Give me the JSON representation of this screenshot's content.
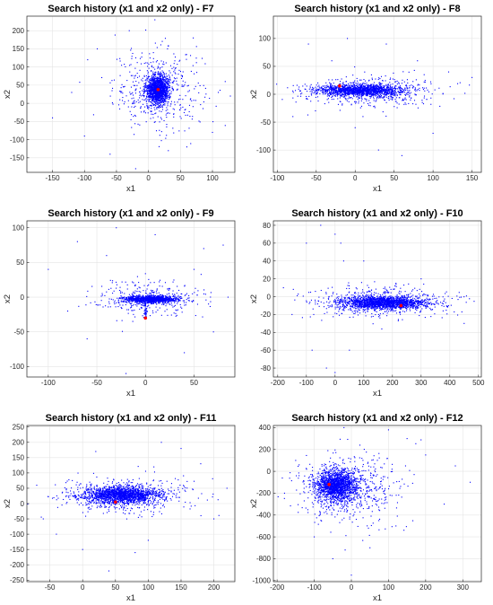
{
  "chart_data": [
    {
      "id": "f7",
      "type": "scatter",
      "title": "Search history (x1 and x2 only) - F7",
      "xlabel": "x1",
      "ylabel": "x2",
      "xlim": [
        -190,
        135
      ],
      "ylim": [
        -190,
        240
      ],
      "xticks": [
        -150,
        -100,
        -50,
        0,
        50,
        100
      ],
      "yticks": [
        -150,
        -100,
        -50,
        0,
        50,
        100,
        150,
        200
      ],
      "grid": true,
      "point_color": "#0000ff",
      "best_point": {
        "x": 15,
        "y": 38,
        "color": "#ff0000"
      },
      "cloud": {
        "cx": 15,
        "cy": 38,
        "sx": 9,
        "sy": 20,
        "n": 1400
      },
      "halo": {
        "cx": 15,
        "cy": 38,
        "sx": 35,
        "sy": 55,
        "n": 450
      },
      "outliers": [
        [
          -95,
          120
        ],
        [
          -80,
          150
        ],
        [
          -30,
          200
        ],
        [
          10,
          230
        ],
        [
          120,
          60
        ],
        [
          -150,
          -40
        ],
        [
          -100,
          -90
        ],
        [
          60,
          -120
        ],
        [
          100,
          -80
        ],
        [
          -20,
          -180
        ],
        [
          128,
          20
        ],
        [
          70,
          180
        ],
        [
          -120,
          30
        ],
        [
          -60,
          -140
        ]
      ]
    },
    {
      "id": "f8",
      "type": "scatter",
      "title": "Search history (x1 and x2 only) - F8",
      "xlabel": "x1",
      "ylabel": "x2",
      "xlim": [
        -105,
        162
      ],
      "ylim": [
        -140,
        140
      ],
      "xticks": [
        -100,
        -50,
        0,
        50,
        100,
        150
      ],
      "yticks": [
        -100,
        -50,
        0,
        50,
        100
      ],
      "grid": true,
      "point_color": "#0000ff",
      "best_point": {
        "x": -20,
        "y": 15,
        "color": "#ff0000"
      },
      "cloud": {
        "cx": 5,
        "cy": 7,
        "sx": 28,
        "sy": 5,
        "n": 1400
      },
      "halo": {
        "cx": 20,
        "cy": 5,
        "sx": 45,
        "sy": 14,
        "n": 450
      },
      "outliers": [
        [
          -60,
          90
        ],
        [
          -10,
          100
        ],
        [
          40,
          90
        ],
        [
          120,
          40
        ],
        [
          -80,
          -40
        ],
        [
          0,
          -60
        ],
        [
          30,
          -100
        ],
        [
          60,
          -110
        ],
        [
          100,
          -70
        ],
        [
          150,
          30
        ],
        [
          -30,
          60
        ],
        [
          80,
          60
        ],
        [
          10,
          -40
        ]
      ]
    },
    {
      "id": "f9",
      "type": "scatter",
      "title": "Search history (x1 and x2 only) - F9",
      "xlabel": "x1",
      "ylabel": "x2",
      "xlim": [
        -122,
        92
      ],
      "ylim": [
        -115,
        110
      ],
      "xticks": [
        -100,
        -50,
        0,
        50
      ],
      "yticks": [
        -100,
        -50,
        0,
        50,
        100
      ],
      "grid": true,
      "point_color": "#0000ff",
      "best_point": {
        "x": 0,
        "y": -30,
        "color": "#ff0000"
      },
      "cloud": {
        "cx": 5,
        "cy": -3,
        "sx": 14,
        "sy": 2.5,
        "n": 1100
      },
      "halo": {
        "cx": 5,
        "cy": -3,
        "sx": 28,
        "sy": 14,
        "n": 320
      },
      "outliers": [
        [
          -70,
          80
        ],
        [
          -30,
          100
        ],
        [
          10,
          90
        ],
        [
          60,
          70
        ],
        [
          80,
          75
        ],
        [
          -100,
          40
        ],
        [
          -80,
          -20
        ],
        [
          -60,
          -60
        ],
        [
          40,
          -80
        ],
        [
          70,
          -50
        ],
        [
          -20,
          -110
        ],
        [
          50,
          40
        ],
        [
          -40,
          60
        ],
        [
          85,
          0
        ]
      ]
    },
    {
      "id": "f10",
      "type": "scatter",
      "title": "Search history (x1 and x2 only) - F10",
      "xlabel": "x1",
      "ylabel": "x2",
      "xlim": [
        -215,
        510
      ],
      "ylim": [
        -90,
        85
      ],
      "xticks": [
        -200,
        -100,
        0,
        100,
        200,
        300,
        400,
        500
      ],
      "yticks": [
        -80,
        -60,
        -40,
        -20,
        0,
        20,
        40,
        60,
        80
      ],
      "grid": true,
      "point_color": "#0000ff",
      "best_point": {
        "x": 230,
        "y": -10,
        "color": "#ff0000"
      },
      "cloud": {
        "cx": 170,
        "cy": -7,
        "sx": 75,
        "sy": 3.5,
        "n": 1600
      },
      "halo": {
        "cx": 150,
        "cy": -6,
        "sx": 120,
        "sy": 9,
        "n": 500
      },
      "outliers": [
        [
          -100,
          60
        ],
        [
          -50,
          80
        ],
        [
          0,
          70
        ],
        [
          20,
          60
        ],
        [
          -150,
          -20
        ],
        [
          -80,
          -60
        ],
        [
          -30,
          -80
        ],
        [
          0,
          -85
        ],
        [
          300,
          20
        ],
        [
          450,
          -30
        ],
        [
          -180,
          10
        ],
        [
          100,
          40
        ],
        [
          50,
          -60
        ],
        [
          30,
          40
        ]
      ]
    },
    {
      "id": "f11",
      "type": "scatter",
      "title": "Search history (x1 and x2 only) - F11",
      "xlabel": "x1",
      "ylabel": "x2",
      "xlim": [
        -85,
        232
      ],
      "ylim": [
        -255,
        255
      ],
      "xticks": [
        -50,
        0,
        50,
        100,
        150,
        200
      ],
      "yticks": [
        -250,
        -200,
        -150,
        -100,
        -50,
        0,
        50,
        100,
        150,
        200,
        250
      ],
      "grid": true,
      "point_color": "#0000ff",
      "best_point": {
        "x": 50,
        "y": 5,
        "color": "#ff0000"
      },
      "cloud": {
        "cx": 60,
        "cy": 28,
        "sx": 28,
        "sy": 13,
        "n": 1600
      },
      "halo": {
        "cx": 60,
        "cy": 25,
        "sx": 50,
        "sy": 30,
        "n": 500
      },
      "outliers": [
        [
          -60,
          -50
        ],
        [
          -40,
          -100
        ],
        [
          0,
          -150
        ],
        [
          40,
          -220
        ],
        [
          100,
          -120
        ],
        [
          150,
          180
        ],
        [
          180,
          130
        ],
        [
          220,
          50
        ],
        [
          -70,
          60
        ],
        [
          120,
          200
        ],
        [
          20,
          170
        ],
        [
          200,
          -50
        ],
        [
          80,
          -160
        ]
      ]
    },
    {
      "id": "f12",
      "type": "scatter",
      "title": "Search history (x1 and x2 only) - F12",
      "xlabel": "x1",
      "ylabel": "x2",
      "xlim": [
        -210,
        350
      ],
      "ylim": [
        -1010,
        420
      ],
      "xticks": [
        -200,
        -100,
        0,
        100,
        200,
        300
      ],
      "yticks": [
        -1000,
        -800,
        -600,
        -400,
        -200,
        0,
        200,
        400
      ],
      "grid": true,
      "point_color": "#0000ff",
      "best_point": {
        "x": -60,
        "y": -120,
        "color": "#ff0000"
      },
      "cloud": {
        "cx": -40,
        "cy": -130,
        "sx": 28,
        "sy": 70,
        "n": 1600
      },
      "halo": {
        "cx": -10,
        "cy": -150,
        "sx": 70,
        "sy": 160,
        "n": 550
      },
      "outliers": [
        [
          -180,
          -200
        ],
        [
          -150,
          100
        ],
        [
          -100,
          -600
        ],
        [
          -50,
          -800
        ],
        [
          0,
          -950
        ],
        [
          50,
          -700
        ],
        [
          150,
          300
        ],
        [
          250,
          -300
        ],
        [
          320,
          -100
        ],
        [
          200,
          150
        ],
        [
          100,
          380
        ],
        [
          -20,
          400
        ],
        [
          280,
          50
        ],
        [
          120,
          -500
        ]
      ]
    }
  ]
}
